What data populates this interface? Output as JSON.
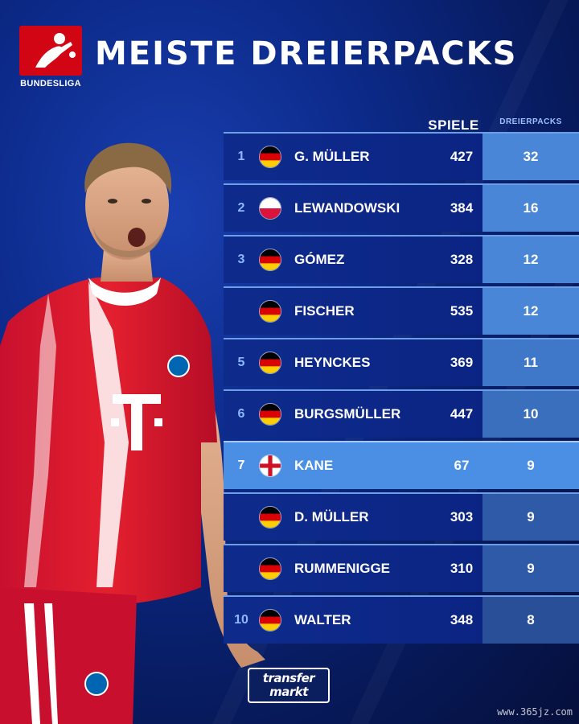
{
  "header": {
    "title": "MEISTE DREIERPACKS",
    "logo_text": "BUNDESLIGA",
    "logo_icon": "bundesliga-logo-icon"
  },
  "table": {
    "col_spiele": "SPIELE",
    "col_dreierpacks": "DREIERPACKS",
    "rows": [
      {
        "rank": "1",
        "flag": "germany",
        "name": "G. MÜLLER",
        "spiele": "427",
        "dreierpacks": "32"
      },
      {
        "rank": "2",
        "flag": "poland",
        "name": "LEWANDOWSKI",
        "spiele": "384",
        "dreierpacks": "16"
      },
      {
        "rank": "3",
        "flag": "germany",
        "name": "GÓMEZ",
        "spiele": "328",
        "dreierpacks": "12"
      },
      {
        "rank": "",
        "flag": "germany",
        "name": "FISCHER",
        "spiele": "535",
        "dreierpacks": "12"
      },
      {
        "rank": "5",
        "flag": "germany",
        "name": "HEYNCKES",
        "spiele": "369",
        "dreierpacks": "11"
      },
      {
        "rank": "6",
        "flag": "germany",
        "name": "BURGSMÜLLER",
        "spiele": "447",
        "dreierpacks": "10"
      },
      {
        "rank": "7",
        "flag": "england",
        "name": "KANE",
        "spiele": "67",
        "dreierpacks": "9"
      },
      {
        "rank": "",
        "flag": "germany",
        "name": "D. MÜLLER",
        "spiele": "303",
        "dreierpacks": "9"
      },
      {
        "rank": "",
        "flag": "germany",
        "name": "RUMMENIGGE",
        "spiele": "310",
        "dreierpacks": "9"
      },
      {
        "rank": "10",
        "flag": "germany",
        "name": "WALTER",
        "spiele": "348",
        "dreierpacks": "8"
      }
    ],
    "highlight_color": "#4a8fe3",
    "dp_colors": [
      "#4a86d8",
      "#4a86d8",
      "#4a86d8",
      "#4a86d8",
      "#3f78c9",
      "#3a6fbe",
      "#4a8fe3",
      "#2e5aa8",
      "#2e5aa8",
      "#284f98"
    ]
  },
  "player": {
    "jersey_text": "T",
    "image_icon": "player-photo-icon"
  },
  "footer": {
    "logo_line1": "transfer",
    "logo_line2": "markt",
    "watermark": "www.365jz.com"
  }
}
